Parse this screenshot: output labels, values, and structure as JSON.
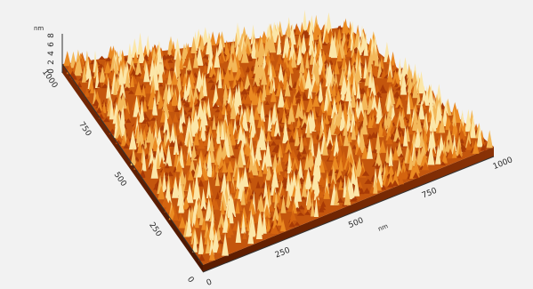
{
  "chart_data": {
    "type": "surface",
    "title": "",
    "colormap": [
      "#6b1f00",
      "#a83a06",
      "#d4640f",
      "#ea8a22",
      "#f3b85a",
      "#fbe6a8"
    ],
    "background": "#f2f2f2",
    "x_axis": {
      "label": "nm",
      "range": [
        0,
        1000
      ],
      "ticks": [
        "0",
        "250",
        "500",
        "750",
        "1000"
      ]
    },
    "y_axis": {
      "label": "",
      "range": [
        0,
        1000
      ],
      "ticks": [
        "0",
        "250",
        "500",
        "750",
        "1000"
      ]
    },
    "z_axis": {
      "label": "nm",
      "range": [
        0,
        8
      ],
      "ticks": [
        "0",
        "2",
        "4",
        "6",
        "8"
      ]
    },
    "grid": false
  }
}
